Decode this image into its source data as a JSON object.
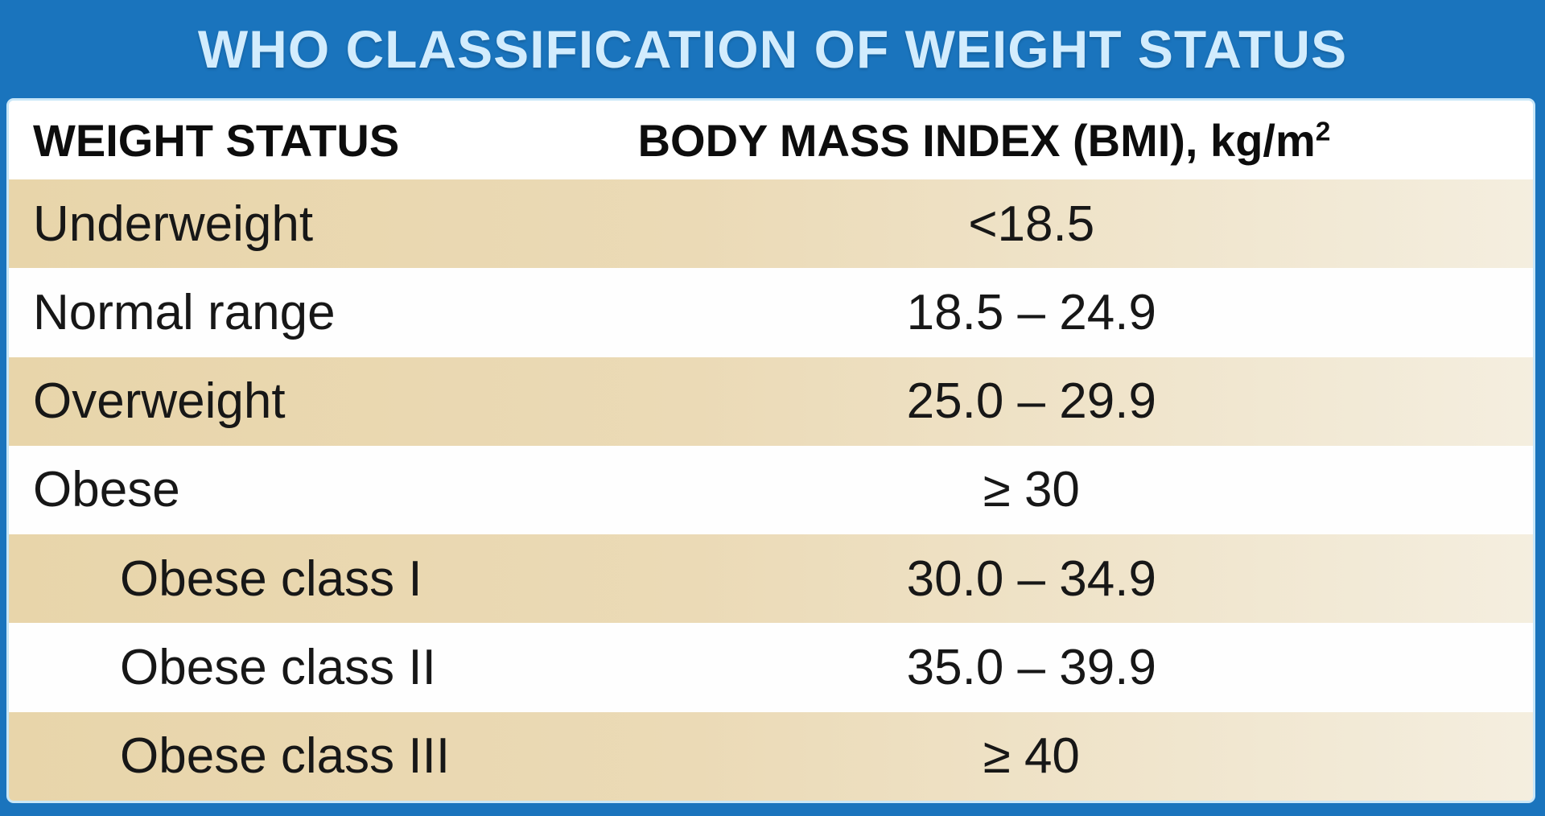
{
  "title": "WHO CLASSIFICATION OF WEIGHT STATUS",
  "table": {
    "header": {
      "col1": "WEIGHT STATUS",
      "col2_main": "BODY MASS INDEX (BMI), kg/m",
      "col2_sup": "2"
    },
    "rows": [
      {
        "label": "Underweight",
        "value": "<18.5",
        "indent": false,
        "shade": "tan"
      },
      {
        "label": "Normal range",
        "value": "18.5 – 24.9",
        "indent": false,
        "shade": "white"
      },
      {
        "label": "Overweight",
        "value": "25.0 – 29.9",
        "indent": false,
        "shade": "tan"
      },
      {
        "label": "Obese",
        "value": "≥ 30",
        "indent": false,
        "shade": "white"
      },
      {
        "label": "Obese class I",
        "value": "30.0 – 34.9",
        "indent": true,
        "shade": "tan"
      },
      {
        "label": "Obese class II",
        "value": "35.0 – 39.9",
        "indent": true,
        "shade": "white"
      },
      {
        "label": "Obese class III",
        "value": "≥ 40",
        "indent": true,
        "shade": "tan"
      }
    ]
  },
  "colors": {
    "background_blue": "#1a74bd",
    "title_text": "#d2ecfd",
    "card_edge": "#c9e7f8",
    "tan_row_left": "#e8d5aa",
    "tan_row_right": "#f4eedf",
    "text": "#171717"
  },
  "chart_data": {
    "type": "table",
    "title": "WHO CLASSIFICATION OF WEIGHT STATUS",
    "columns": [
      "WEIGHT STATUS",
      "BODY MASS INDEX (BMI), kg/m²"
    ],
    "rows": [
      [
        "Underweight",
        "<18.5"
      ],
      [
        "Normal range",
        "18.5 – 24.9"
      ],
      [
        "Overweight",
        "25.0 – 29.9"
      ],
      [
        "Obese",
        "≥ 30"
      ],
      [
        "Obese class I",
        "30.0 – 34.9"
      ],
      [
        "Obese class II",
        "35.0 – 39.9"
      ],
      [
        "Obese class III",
        "≥ 40"
      ]
    ],
    "bmi_ranges_numeric": [
      {
        "category": "Underweight",
        "min": null,
        "max": 18.5
      },
      {
        "category": "Normal range",
        "min": 18.5,
        "max": 24.9
      },
      {
        "category": "Overweight",
        "min": 25.0,
        "max": 29.9
      },
      {
        "category": "Obese",
        "min": 30,
        "max": null
      },
      {
        "category": "Obese class I",
        "min": 30.0,
        "max": 34.9
      },
      {
        "category": "Obese class II",
        "min": 35.0,
        "max": 39.9
      },
      {
        "category": "Obese class III",
        "min": 40,
        "max": null
      }
    ],
    "layout": {
      "zebra_shading": [
        "tan",
        "white"
      ],
      "sub_rows_indented": true
    }
  }
}
